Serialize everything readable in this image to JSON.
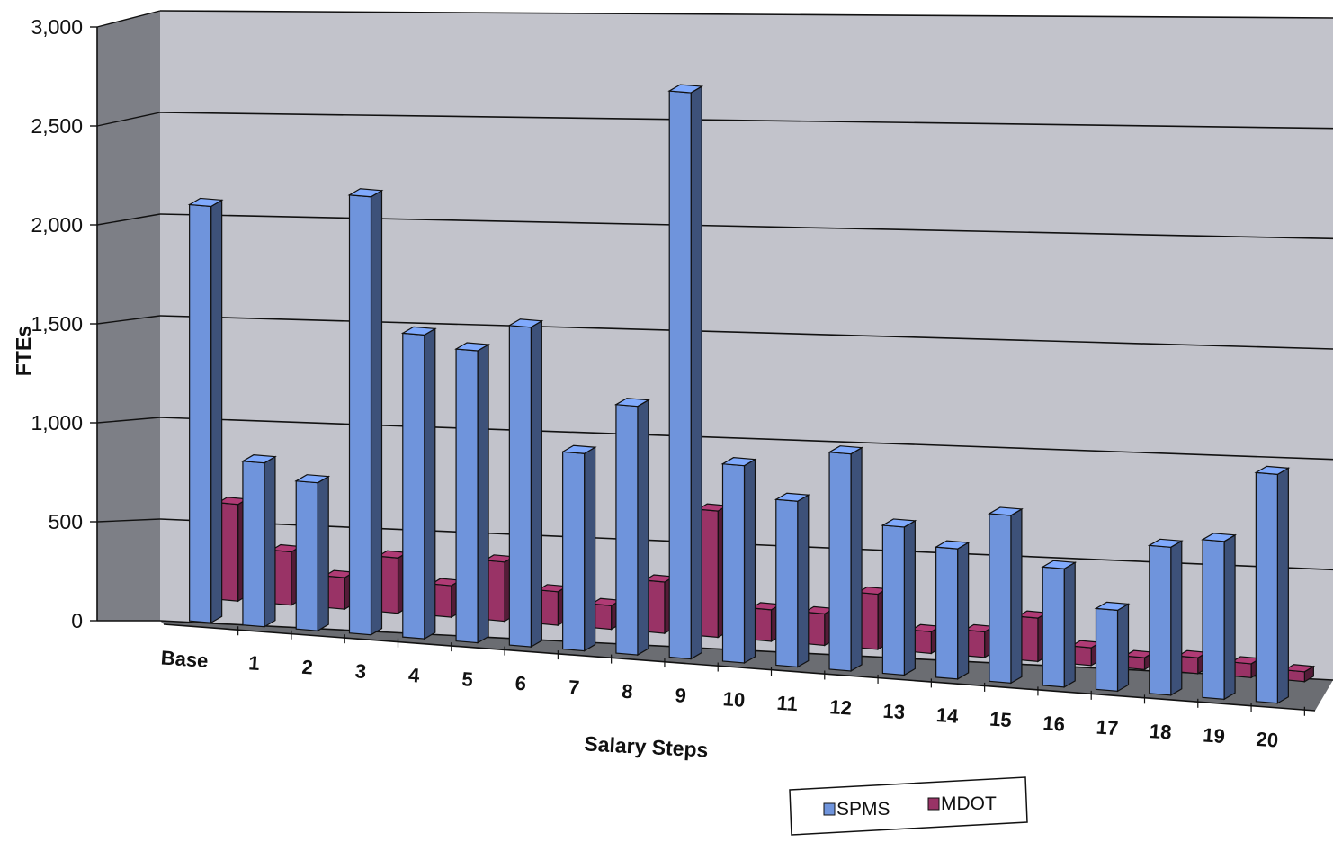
{
  "chart_data": {
    "type": "bar",
    "title": "",
    "xlabel": "Salary Steps",
    "ylabel": "FTEs",
    "ylim": [
      0,
      3000
    ],
    "yticks": [
      "0",
      "500",
      "1,000",
      "1,500",
      "2,000",
      "2,500",
      "3,000"
    ],
    "ytick_values": [
      0,
      500,
      1000,
      1500,
      2000,
      2500,
      3000
    ],
    "grid": true,
    "three_d": true,
    "legend_position": "bottom",
    "categories": [
      "Base",
      "1",
      "2",
      "3",
      "4",
      "5",
      "6",
      "7",
      "8",
      "9",
      "10",
      "11",
      "12",
      "13",
      "14",
      "15",
      "16",
      "17",
      "18",
      "19",
      "20"
    ],
    "series": [
      {
        "name": "SPMS",
        "color": "#6f94dc",
        "values": [
          2110,
          830,
          750,
          2220,
          1540,
          1480,
          1620,
          1000,
          1260,
          2870,
          1000,
          840,
          1100,
          750,
          660,
          850,
          600,
          410,
          750,
          800,
          1160
        ]
      },
      {
        "name": "MDOT",
        "color": "#993366",
        "values": [
          490,
          270,
          160,
          280,
          160,
          300,
          170,
          120,
          260,
          640,
          160,
          160,
          280,
          110,
          130,
          220,
          90,
          60,
          80,
          70,
          50
        ]
      }
    ]
  }
}
